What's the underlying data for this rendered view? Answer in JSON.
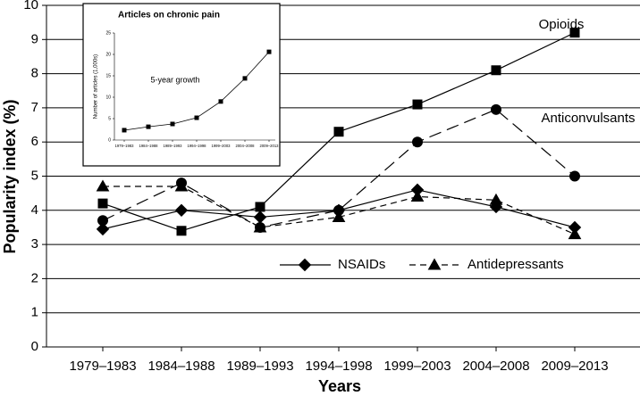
{
  "chart_data": [
    {
      "type": "line",
      "x_label": "Years",
      "y_label": "Popularity index (%)",
      "categories": [
        "1979–1983",
        "1984–1988",
        "1989–1993",
        "1994–1998",
        "1999–2003",
        "2004–2008",
        "2009–2013"
      ],
      "series": [
        {
          "name": "Opioids",
          "color": "#000000",
          "marker": "square",
          "dash": "solid",
          "values": [
            4.2,
            3.4,
            4.1,
            6.3,
            7.1,
            8.1,
            9.2
          ]
        },
        {
          "name": "Anticonvulsants",
          "color": "#000000",
          "marker": "circle",
          "dash": "longdash",
          "values": [
            3.7,
            4.8,
            3.5,
            4.0,
            6.0,
            6.95,
            5.0
          ]
        },
        {
          "name": "NSAIDs",
          "color": "#000000",
          "marker": "diamond",
          "dash": "solid",
          "values": [
            3.45,
            4.0,
            3.8,
            4.0,
            4.6,
            4.1,
            3.5
          ]
        },
        {
          "name": "Antidepressants",
          "color": "#000000",
          "marker": "triangle",
          "dash": "dash",
          "values": [
            4.7,
            4.7,
            3.5,
            3.8,
            4.4,
            4.3,
            3.3
          ]
        }
      ],
      "ylim": [
        0,
        10
      ],
      "yticks": [
        0,
        1,
        2,
        3,
        4,
        5,
        6,
        7,
        8,
        9,
        10
      ],
      "grid": true
    },
    {
      "type": "line",
      "title": "Articles on chronic pain",
      "y_label": "Number of articles (1,000s)",
      "annotation": "5-year growth",
      "categories": [
        "1979–1983",
        "1984–1988",
        "1989–1993",
        "1994–1998",
        "1999–2003",
        "2004–2008",
        "2009–2013"
      ],
      "values": [
        2.3,
        3.1,
        3.75,
        5.2,
        9.0,
        14.4,
        20.6
      ],
      "color": "#000000",
      "marker": "square",
      "ylim": [
        0,
        25
      ],
      "yticks": [
        0,
        5,
        10,
        15,
        20,
        25
      ],
      "grid": false
    }
  ]
}
